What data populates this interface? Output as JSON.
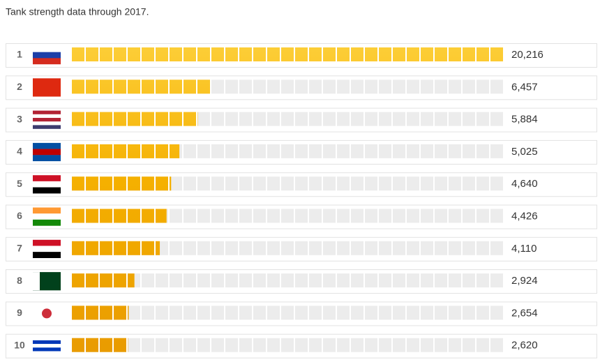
{
  "chart_data": {
    "type": "bar",
    "orientation": "horizontal",
    "title": "Tank strength data through 2017.",
    "categories": [
      "1",
      "2",
      "3",
      "4",
      "5",
      "6",
      "7",
      "8",
      "9",
      "10"
    ],
    "values": [
      20216,
      6457,
      5884,
      5025,
      4640,
      4426,
      4110,
      2924,
      2654,
      2620
    ],
    "value_labels": [
      "20,216",
      "6,457",
      "5,884",
      "5,025",
      "4,640",
      "4,426",
      "4,110",
      "2,924",
      "2,654",
      "2,620"
    ],
    "xlim": [
      0,
      20216
    ],
    "color": "#f5a800"
  }
}
